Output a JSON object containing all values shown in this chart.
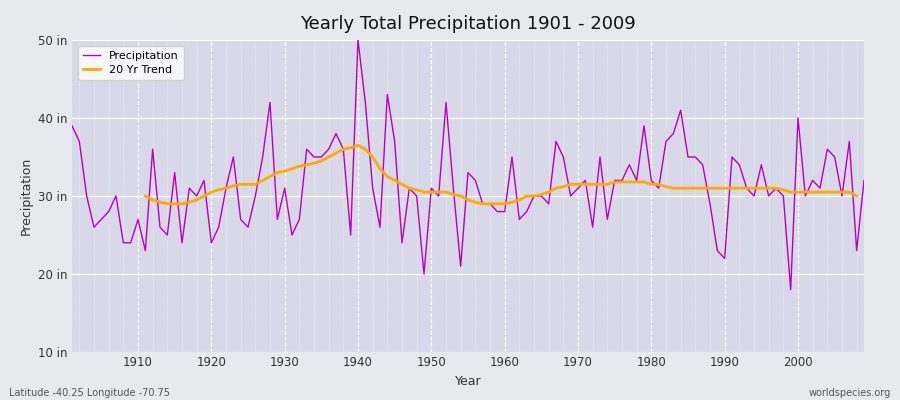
{
  "title": "Yearly Total Precipitation 1901 - 2009",
  "xlabel": "Year",
  "ylabel": "Precipitation",
  "bottom_left_label": "Latitude -40.25 Longitude -70.75",
  "bottom_right_label": "worldspecies.org",
  "bg_color": "#e8e8f0",
  "plot_bg_color": "#d8d8e8",
  "grid_color": "#ffffff",
  "precip_color": "#bb00bb",
  "trend_color": "#ffaa00",
  "ylim": [
    10,
    50
  ],
  "yticks": [
    10,
    20,
    30,
    40,
    50
  ],
  "ytick_labels": [
    "10 in",
    "20 in",
    "30 in",
    "40 in",
    "50 in"
  ],
  "xticks": [
    1910,
    1920,
    1930,
    1940,
    1950,
    1960,
    1970,
    1980,
    1990,
    2000
  ],
  "xlim": [
    1901,
    2009
  ],
  "years": [
    1901,
    1902,
    1903,
    1904,
    1905,
    1906,
    1907,
    1908,
    1909,
    1910,
    1911,
    1912,
    1913,
    1914,
    1915,
    1916,
    1917,
    1918,
    1919,
    1920,
    1921,
    1922,
    1923,
    1924,
    1925,
    1926,
    1927,
    1928,
    1929,
    1930,
    1931,
    1932,
    1933,
    1934,
    1935,
    1936,
    1937,
    1938,
    1939,
    1940,
    1941,
    1942,
    1943,
    1944,
    1945,
    1946,
    1947,
    1948,
    1949,
    1950,
    1951,
    1952,
    1953,
    1954,
    1955,
    1956,
    1957,
    1958,
    1959,
    1960,
    1961,
    1962,
    1963,
    1964,
    1965,
    1966,
    1967,
    1968,
    1969,
    1970,
    1971,
    1972,
    1973,
    1974,
    1975,
    1976,
    1977,
    1978,
    1979,
    1980,
    1981,
    1982,
    1983,
    1984,
    1985,
    1986,
    1987,
    1988,
    1989,
    1990,
    1991,
    1992,
    1993,
    1994,
    1995,
    1996,
    1997,
    1998,
    1999,
    2000,
    2001,
    2002,
    2003,
    2004,
    2005,
    2006,
    2007,
    2008,
    2009
  ],
  "precip": [
    39,
    37,
    30,
    26,
    27,
    28,
    30,
    24,
    24,
    27,
    23,
    36,
    26,
    25,
    33,
    24,
    31,
    30,
    32,
    24,
    26,
    31,
    35,
    27,
    26,
    30,
    35,
    42,
    27,
    31,
    25,
    27,
    36,
    35,
    35,
    36,
    38,
    36,
    25,
    50,
    42,
    31,
    26,
    43,
    37,
    24,
    31,
    30,
    20,
    31,
    30,
    42,
    31,
    21,
    33,
    32,
    29,
    29,
    28,
    28,
    35,
    27,
    28,
    30,
    30,
    29,
    37,
    35,
    30,
    31,
    32,
    26,
    35,
    27,
    32,
    32,
    34,
    32,
    39,
    32,
    31,
    37,
    38,
    41,
    35,
    35,
    34,
    29,
    23,
    22,
    35,
    34,
    31,
    30,
    34,
    30,
    31,
    30,
    18,
    40,
    30,
    32,
    31,
    36,
    35,
    30,
    37,
    23,
    32
  ],
  "trend": [
    null,
    null,
    null,
    null,
    null,
    null,
    null,
    null,
    null,
    null,
    30.0,
    29.5,
    29.2,
    29.0,
    29.0,
    29.0,
    29.2,
    29.5,
    30.0,
    30.5,
    30.8,
    31.0,
    31.3,
    31.5,
    31.5,
    31.5,
    32.0,
    32.5,
    33.0,
    33.2,
    33.5,
    33.8,
    34.0,
    34.2,
    34.5,
    35.0,
    35.5,
    36.0,
    36.2,
    36.5,
    36.0,
    35.0,
    33.5,
    32.5,
    32.0,
    31.5,
    31.0,
    30.8,
    30.5,
    30.5,
    30.5,
    30.5,
    30.2,
    30.0,
    29.5,
    29.2,
    29.0,
    29.0,
    29.0,
    29.0,
    29.2,
    29.5,
    30.0,
    30.0,
    30.2,
    30.5,
    31.0,
    31.2,
    31.5,
    31.5,
    31.5,
    31.5,
    31.5,
    31.5,
    31.8,
    31.8,
    31.8,
    31.8,
    31.8,
    31.5,
    31.5,
    31.2,
    31.0,
    31.0,
    31.0,
    31.0,
    31.0,
    31.0,
    31.0,
    31.0,
    31.0,
    31.0,
    31.0,
    31.0,
    31.0,
    31.0,
    31.0,
    30.8,
    30.5,
    30.5,
    30.5,
    30.5,
    30.5,
    30.5,
    30.5,
    30.5,
    30.5,
    30.0,
    null
  ]
}
